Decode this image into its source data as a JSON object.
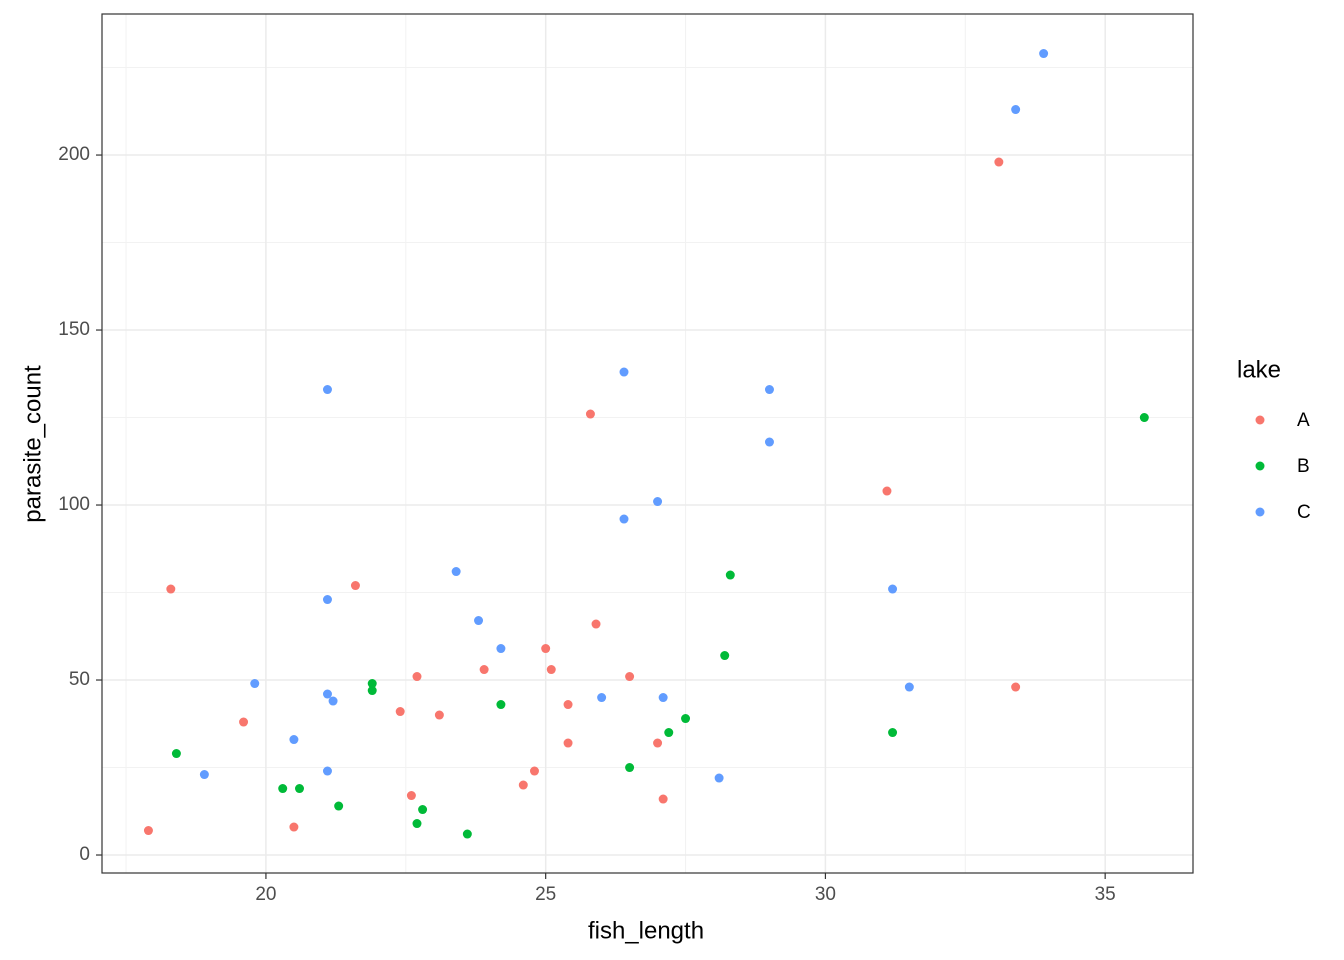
{
  "chart_data": {
    "type": "scatter",
    "xlabel": "fish_length",
    "ylabel": "parasite_count",
    "xlim": [
      17.07,
      36.57
    ],
    "ylim": [
      -5.14,
      240.3
    ],
    "xticks": [
      20,
      25,
      30,
      35
    ],
    "yticks": [
      0,
      50,
      100,
      150,
      200
    ],
    "xminor": [
      17.5,
      22.5,
      27.5,
      32.5
    ],
    "yminor": [
      25,
      75,
      125,
      175,
      225
    ],
    "grid": true,
    "legend_title": "lake",
    "legend": "right",
    "series": [
      {
        "name": "A",
        "color": "#F8766D",
        "x": [
          17.9,
          18.3,
          19.6,
          20.5,
          21.6,
          22.4,
          22.6,
          22.7,
          23.1,
          23.9,
          24.6,
          24.8,
          25.0,
          25.1,
          25.4,
          25.4,
          25.8,
          25.9,
          26.5,
          27.0,
          27.1,
          31.1,
          33.1,
          33.4
        ],
        "y": [
          7,
          76,
          38,
          8,
          77,
          41,
          17,
          51,
          40,
          53,
          20,
          24,
          59,
          53,
          43,
          32,
          126,
          66,
          51,
          32,
          16,
          104,
          198,
          48
        ]
      },
      {
        "name": "B",
        "color": "#00BA38",
        "x": [
          18.4,
          20.3,
          20.6,
          21.3,
          21.9,
          21.9,
          22.7,
          22.8,
          23.6,
          24.2,
          26.5,
          27.2,
          27.5,
          28.2,
          28.3,
          31.2,
          35.7
        ],
        "y": [
          29,
          19,
          19,
          14,
          49,
          47,
          9,
          13,
          6,
          43,
          25,
          35,
          39,
          57,
          80,
          35,
          125
        ]
      },
      {
        "name": "C",
        "color": "#619CFF",
        "x": [
          18.9,
          19.8,
          20.5,
          21.1,
          21.1,
          21.1,
          21.2,
          21.1,
          23.4,
          23.8,
          24.2,
          26.0,
          26.4,
          26.4,
          27.0,
          27.1,
          28.1,
          29.0,
          29.0,
          31.2,
          31.5,
          33.4,
          33.9
        ],
        "y": [
          23,
          49,
          33,
          133,
          73,
          46,
          44,
          24,
          81,
          67,
          59,
          45,
          138,
          96,
          101,
          45,
          22,
          133,
          118,
          76,
          48,
          213,
          229
        ]
      }
    ]
  }
}
